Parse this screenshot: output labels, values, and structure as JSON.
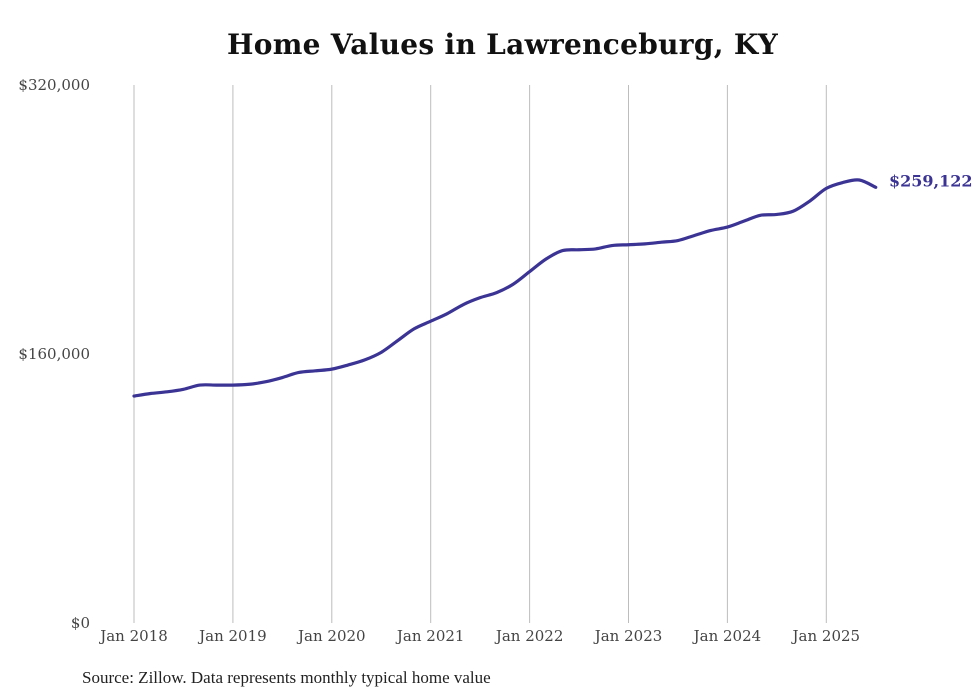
{
  "chart_data": {
    "type": "line",
    "title": "Home Values in Lawrenceburg, KY",
    "source": "Source: Zillow. Data represents monthly typical home value",
    "xlabel": "",
    "ylabel": "",
    "y_ticks": [
      "$0",
      "$160,000",
      "$320,000"
    ],
    "ylim": [
      0,
      320000
    ],
    "x_ticks": [
      "Jan 2018",
      "Jan 2019",
      "Jan 2020",
      "Jan 2021",
      "Jan 2022",
      "Jan 2023",
      "Jan 2024",
      "Jan 2025"
    ],
    "x_range": [
      "2018-01",
      "2025-07"
    ],
    "grid": "vertical",
    "line_color": "#3b3494",
    "end_label": "$259,122",
    "series": [
      {
        "x": [
          "2018-01",
          "2018-03",
          "2018-05",
          "2018-07",
          "2018-09",
          "2018-11",
          "2019-01",
          "2019-03",
          "2019-05",
          "2019-07",
          "2019-09",
          "2019-11",
          "2020-01",
          "2020-03",
          "2020-05",
          "2020-07",
          "2020-09",
          "2020-11",
          "2021-01",
          "2021-03",
          "2021-05",
          "2021-07",
          "2021-09",
          "2021-11",
          "2022-01",
          "2022-03",
          "2022-05",
          "2022-07",
          "2022-09",
          "2022-11",
          "2023-01",
          "2023-03",
          "2023-05",
          "2023-07",
          "2023-09",
          "2023-11",
          "2024-01",
          "2024-03",
          "2024-05",
          "2024-07",
          "2024-09",
          "2024-11",
          "2025-01",
          "2025-03",
          "2025-05",
          "2025-07"
        ],
        "values": [
          135000,
          136500,
          137500,
          139000,
          141500,
          141500,
          141500,
          142000,
          143500,
          146000,
          149000,
          150000,
          151000,
          153500,
          156500,
          161000,
          168000,
          175000,
          179500,
          184000,
          189500,
          193500,
          196500,
          201500,
          209000,
          216500,
          221500,
          222000,
          222500,
          224500,
          225000,
          225500,
          226500,
          227500,
          230500,
          233500,
          235500,
          239000,
          242500,
          243000,
          245000,
          251000,
          258500,
          262000,
          263500,
          259122
        ]
      }
    ]
  }
}
